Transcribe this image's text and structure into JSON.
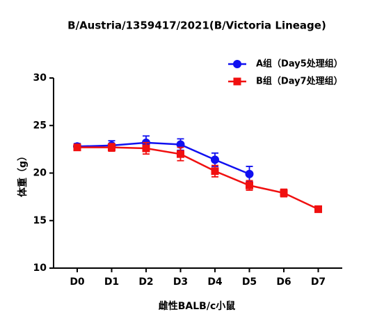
{
  "chart_data": {
    "type": "line",
    "title": "B/Austria/1359417/2021(B/Victoria Lineage)",
    "x_label": "雌性BALB/c小鼠",
    "y_label": "体重（g）",
    "categories": [
      "D0",
      "D1",
      "D2",
      "D3",
      "D4",
      "D5",
      "D6",
      "D7"
    ],
    "series": [
      {
        "name": "A组（Day5处理组）",
        "color": "#1010f0",
        "marker": "circle",
        "values": [
          22.8,
          22.9,
          23.2,
          23.0,
          21.4,
          19.9,
          null,
          null
        ],
        "errors": [
          0.3,
          0.5,
          0.7,
          0.6,
          0.7,
          0.8,
          null,
          null
        ]
      },
      {
        "name": "B组（Day7处理组）",
        "color": "#f01010",
        "marker": "square",
        "values": [
          22.7,
          22.7,
          22.6,
          22.0,
          20.2,
          18.7,
          17.9,
          16.2
        ],
        "errors": [
          0.3,
          0.4,
          0.6,
          0.7,
          0.6,
          0.5,
          0.4,
          0.2
        ]
      }
    ],
    "ylim": [
      10,
      30
    ],
    "yticks": [
      10,
      15,
      20,
      25,
      30
    ],
    "legend": "upper right"
  }
}
